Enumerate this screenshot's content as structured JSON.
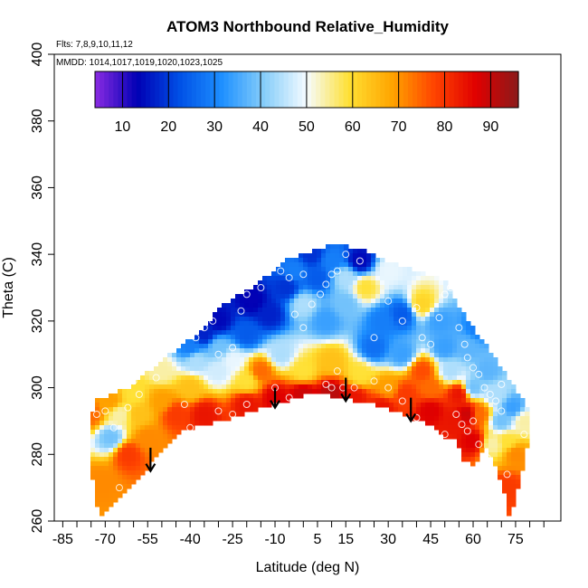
{
  "chart_data": {
    "type": "heatmap",
    "title": "ATOM3 Northbound Relative_Humidity",
    "subtitle_flights": "Flts: 7,8,9,10,11,12",
    "subtitle_dates": "MMDD: 1014,1017,1019,1020,1023,1025",
    "xlabel": "Latitude (deg N)",
    "ylabel": "Theta (C)",
    "xlim": [
      -85,
      85
    ],
    "ylim": [
      260,
      400
    ],
    "x_ticks": [
      "-85",
      "-70",
      "-55",
      "-40",
      "-25",
      "-10",
      "5",
      "15",
      "30",
      "45",
      "60",
      "75"
    ],
    "y_ticks": [
      "260",
      "280",
      "300",
      "320",
      "340",
      "360",
      "380",
      "400"
    ],
    "colorbar": {
      "min": 5,
      "max": 97,
      "ticks": [
        "10",
        "20",
        "30",
        "40",
        "50",
        "60",
        "70",
        "80",
        "90"
      ],
      "colors": [
        "#8a2be2",
        "#0000b4",
        "#0050e6",
        "#1e90ff",
        "#87cefa",
        "#f5fbff",
        "#ffe033",
        "#ffa500",
        "#ff4500",
        "#e00000",
        "#8b1a1a"
      ]
    },
    "top_boundary": [
      [
        -74,
        296
      ],
      [
        -62,
        300
      ],
      [
        -50,
        308
      ],
      [
        -38,
        316
      ],
      [
        -28,
        325
      ],
      [
        -15,
        332
      ],
      [
        -5,
        339
      ],
      [
        3,
        341
      ],
      [
        10,
        343
      ],
      [
        20,
        342
      ],
      [
        30,
        338
      ],
      [
        40,
        335
      ],
      [
        50,
        332
      ],
      [
        58,
        320
      ],
      [
        63,
        315
      ],
      [
        68,
        309
      ],
      [
        73,
        302
      ],
      [
        77,
        297
      ],
      [
        80,
        292
      ]
    ],
    "bottom_boundary": [
      [
        80,
        285
      ],
      [
        78,
        278
      ],
      [
        76,
        270
      ],
      [
        73,
        260
      ],
      [
        70,
        272
      ],
      [
        65,
        282
      ],
      [
        60,
        277
      ],
      [
        56,
        278
      ],
      [
        54,
        285
      ],
      [
        50,
        285
      ],
      [
        45,
        289
      ],
      [
        35,
        292
      ],
      [
        25,
        295
      ],
      [
        12,
        297
      ],
      [
        5,
        299
      ],
      [
        -5,
        296
      ],
      [
        -15,
        294
      ],
      [
        -25,
        291
      ],
      [
        -35,
        289
      ],
      [
        -45,
        286
      ],
      [
        -55,
        276
      ],
      [
        -65,
        267
      ],
      [
        -72,
        261
      ],
      [
        -76,
        280
      ]
    ],
    "rh_field": [
      [
        -75,
        292,
        75
      ],
      [
        -68,
        285,
        40
      ],
      [
        -65,
        292,
        55
      ],
      [
        -72,
        272,
        72
      ],
      [
        -62,
        280,
        80
      ],
      [
        -55,
        285,
        72
      ],
      [
        -50,
        296,
        70
      ],
      [
        -40,
        300,
        65
      ],
      [
        -50,
        305,
        55
      ],
      [
        -38,
        308,
        45
      ],
      [
        -30,
        305,
        48
      ],
      [
        -20,
        302,
        60
      ],
      [
        -45,
        292,
        80
      ],
      [
        -35,
        292,
        85
      ],
      [
        -20,
        295,
        85
      ],
      [
        -10,
        297,
        88
      ],
      [
        0,
        298,
        90
      ],
      [
        10,
        298,
        92
      ],
      [
        -15,
        305,
        75
      ],
      [
        -8,
        310,
        45
      ],
      [
        0,
        305,
        60
      ],
      [
        10,
        308,
        65
      ],
      [
        20,
        304,
        60
      ],
      [
        30,
        300,
        70
      ],
      [
        -30,
        312,
        40
      ],
      [
        -20,
        316,
        25
      ],
      [
        -12,
        322,
        18
      ],
      [
        -6,
        330,
        20
      ],
      [
        -30,
        320,
        15
      ],
      [
        -18,
        326,
        14
      ],
      [
        -40,
        312,
        30
      ],
      [
        -35,
        316,
        18
      ],
      [
        0,
        325,
        45
      ],
      [
        8,
        320,
        35
      ],
      [
        15,
        325,
        40
      ],
      [
        5,
        333,
        25
      ],
      [
        15,
        333,
        45
      ],
      [
        22,
        330,
        60
      ],
      [
        28,
        320,
        30
      ],
      [
        35,
        322,
        25
      ],
      [
        25,
        312,
        28
      ],
      [
        35,
        310,
        35
      ],
      [
        42,
        325,
        62
      ],
      [
        48,
        320,
        35
      ],
      [
        42,
        305,
        78
      ],
      [
        36,
        298,
        80
      ],
      [
        45,
        300,
        75
      ],
      [
        52,
        305,
        45
      ],
      [
        55,
        298,
        85
      ],
      [
        58,
        292,
        90
      ],
      [
        53,
        290,
        85
      ],
      [
        62,
        292,
        75
      ],
      [
        60,
        300,
        40
      ],
      [
        65,
        305,
        38
      ],
      [
        68,
        298,
        45
      ],
      [
        70,
        290,
        40
      ],
      [
        74,
        294,
        35
      ],
      [
        72,
        284,
        60
      ],
      [
        75,
        280,
        72
      ],
      [
        67,
        283,
        55
      ],
      [
        60,
        284,
        88
      ],
      [
        72,
        270,
        80
      ],
      [
        78,
        290,
        55
      ],
      [
        45,
        293,
        88
      ],
      [
        28,
        294,
        85
      ],
      [
        18,
        297,
        85
      ],
      [
        50,
        312,
        35
      ],
      [
        58,
        312,
        38
      ],
      [
        62,
        318,
        30
      ],
      [
        20,
        338,
        15
      ],
      [
        10,
        338,
        30
      ],
      [
        30,
        335,
        50
      ],
      [
        -3,
        335,
        30
      ],
      [
        3,
        340,
        20
      ],
      [
        -25,
        308,
        50
      ],
      [
        -60,
        298,
        60
      ],
      [
        -68,
        296,
        70
      ],
      [
        -58,
        292,
        65
      ]
    ],
    "observation_points": [
      [
        -73,
        292
      ],
      [
        -70,
        293
      ],
      [
        -67,
        288
      ],
      [
        -62,
        294
      ],
      [
        -60,
        302
      ],
      [
        -58,
        298
      ],
      [
        -52,
        303
      ],
      [
        -42,
        295
      ],
      [
        -40,
        288
      ],
      [
        -35,
        287
      ],
      [
        -30,
        293
      ],
      [
        -25,
        292
      ],
      [
        -20,
        295
      ],
      [
        -38,
        315
      ],
      [
        -35,
        318
      ],
      [
        -32,
        320
      ],
      [
        -30,
        310
      ],
      [
        -25,
        312
      ],
      [
        -22,
        323
      ],
      [
        -20,
        328
      ],
      [
        -15,
        330
      ],
      [
        -10,
        338
      ],
      [
        -8,
        335
      ],
      [
        -5,
        333
      ],
      [
        0,
        334
      ],
      [
        -3,
        322
      ],
      [
        0,
        318
      ],
      [
        3,
        325
      ],
      [
        6,
        328
      ],
      [
        8,
        331
      ],
      [
        10,
        334
      ],
      [
        12,
        335
      ],
      [
        15,
        340
      ],
      [
        20,
        338
      ],
      [
        8,
        301
      ],
      [
        10,
        300
      ],
      [
        12,
        305
      ],
      [
        14,
        300
      ],
      [
        18,
        300
      ],
      [
        25,
        315
      ],
      [
        30,
        326
      ],
      [
        35,
        320
      ],
      [
        40,
        324
      ],
      [
        42,
        315
      ],
      [
        45,
        313
      ],
      [
        48,
        321
      ],
      [
        50,
        328
      ],
      [
        52,
        330
      ],
      [
        55,
        318
      ],
      [
        57,
        313
      ],
      [
        58,
        309
      ],
      [
        60,
        306
      ],
      [
        62,
        304
      ],
      [
        64,
        300
      ],
      [
        66,
        298
      ],
      [
        68,
        296
      ],
      [
        70,
        293
      ],
      [
        60,
        290
      ],
      [
        58,
        287
      ],
      [
        56,
        289
      ],
      [
        54,
        292
      ],
      [
        50,
        286
      ],
      [
        45,
        287
      ],
      [
        40,
        291
      ],
      [
        35,
        296
      ],
      [
        30,
        300
      ],
      [
        25,
        302
      ],
      [
        -5,
        297
      ],
      [
        -10,
        300
      ],
      [
        72,
        274
      ],
      [
        -65,
        270
      ],
      [
        78,
        286
      ],
      [
        62,
        283
      ],
      [
        65,
        279
      ],
      [
        70,
        301
      ]
    ],
    "arrows": [
      [
        -54,
        282,
        275
      ],
      [
        -10,
        300,
        294
      ],
      [
        15,
        303,
        296
      ],
      [
        38,
        297,
        290
      ]
    ]
  }
}
